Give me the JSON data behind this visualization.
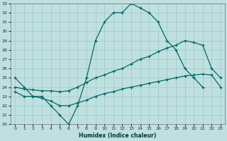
{
  "xlabel": "Humidex (Indice chaleur)",
  "bg_color": "#c0e0e0",
  "grid_color": "#98c8c8",
  "line_color": "#006868",
  "xlim": [
    -0.5,
    23.5
  ],
  "ylim": [
    20,
    33
  ],
  "xticks": [
    0,
    1,
    2,
    3,
    4,
    5,
    6,
    7,
    8,
    9,
    10,
    11,
    12,
    13,
    14,
    15,
    16,
    17,
    18,
    19,
    20,
    21,
    22,
    23
  ],
  "yticks": [
    20,
    21,
    22,
    23,
    24,
    25,
    26,
    27,
    28,
    29,
    30,
    31,
    32,
    33
  ],
  "line1_x": [
    0,
    1,
    2,
    3,
    4,
    5,
    6,
    7,
    8,
    9,
    10,
    11,
    12,
    13,
    14,
    15,
    16,
    17,
    18,
    19,
    20,
    21
  ],
  "line1_y": [
    25,
    24,
    23,
    23,
    22,
    21,
    20,
    22,
    25,
    29,
    31,
    32,
    32,
    33,
    32.5,
    32,
    31,
    29,
    28,
    26,
    25,
    24
  ],
  "line2_x": [
    0,
    1,
    2,
    3,
    4,
    5,
    6,
    7,
    8,
    9,
    10,
    11,
    12,
    13,
    14,
    15,
    16,
    17,
    18,
    19,
    20,
    21,
    22,
    23
  ],
  "line2_y": [
    24,
    23.8,
    23.7,
    23.6,
    23.6,
    23.5,
    23.6,
    24.0,
    24.5,
    25.0,
    25.3,
    25.7,
    26.0,
    26.5,
    27.0,
    27.3,
    27.8,
    28.2,
    28.5,
    29.0,
    28.8,
    28.5,
    26,
    25
  ],
  "line3_x": [
    0,
    1,
    2,
    3,
    4,
    5,
    6,
    7,
    8,
    9,
    10,
    11,
    12,
    13,
    14,
    15,
    16,
    17,
    18,
    19,
    20,
    21,
    22,
    23
  ],
  "line3_y": [
    23.5,
    23.0,
    23.0,
    22.8,
    22.5,
    22.0,
    22.0,
    22.3,
    22.6,
    23.0,
    23.3,
    23.5,
    23.8,
    24.0,
    24.2,
    24.4,
    24.6,
    24.8,
    25.0,
    25.2,
    25.3,
    25.4,
    25.3,
    24.0
  ]
}
